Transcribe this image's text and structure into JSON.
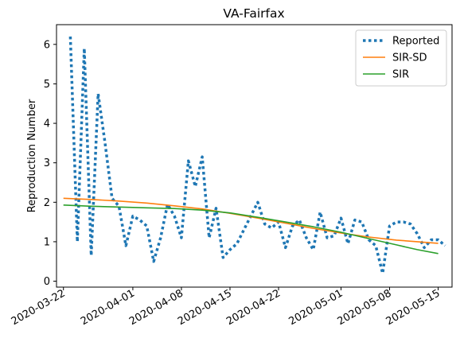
{
  "chart_data": {
    "type": "line",
    "title": "VA-Fairfax",
    "ylabel": "Reproduction Number",
    "xlabel": "",
    "xlim": [
      "2020-03-21",
      "2020-05-17"
    ],
    "ylim": [
      -0.15,
      6.5
    ],
    "x_ticks": [
      "2020-03-22",
      "2020-04-01",
      "2020-04-08",
      "2020-04-15",
      "2020-04-22",
      "2020-05-01",
      "2020-05-08",
      "2020-05-15"
    ],
    "y_ticks": [
      0,
      1,
      2,
      3,
      4,
      5,
      6
    ],
    "legend_position": "top-right",
    "grid": false,
    "series": [
      {
        "name": "Reported",
        "color": "#1f77b4",
        "style": "dotted",
        "points": [
          [
            "2020-03-23",
            6.2
          ],
          [
            "2020-03-24",
            1.0
          ],
          [
            "2020-03-25",
            5.9
          ],
          [
            "2020-03-26",
            0.65
          ],
          [
            "2020-03-27",
            4.75
          ],
          [
            "2020-03-28",
            3.5
          ],
          [
            "2020-03-29",
            2.1
          ],
          [
            "2020-03-30",
            1.9
          ],
          [
            "2020-03-31",
            0.9
          ],
          [
            "2020-04-01",
            1.65
          ],
          [
            "2020-04-02",
            1.55
          ],
          [
            "2020-04-03",
            1.4
          ],
          [
            "2020-04-04",
            0.5
          ],
          [
            "2020-04-05",
            1.1
          ],
          [
            "2020-04-06",
            1.95
          ],
          [
            "2020-04-07",
            1.65
          ],
          [
            "2020-04-08",
            1.1
          ],
          [
            "2020-04-09",
            3.05
          ],
          [
            "2020-04-10",
            2.4
          ],
          [
            "2020-04-11",
            3.15
          ],
          [
            "2020-04-12",
            1.1
          ],
          [
            "2020-04-13",
            1.85
          ],
          [
            "2020-04-14",
            0.6
          ],
          [
            "2020-04-15",
            0.8
          ],
          [
            "2020-04-16",
            0.95
          ],
          [
            "2020-04-17",
            1.3
          ],
          [
            "2020-04-18",
            1.65
          ],
          [
            "2020-04-19",
            2.0
          ],
          [
            "2020-04-20",
            1.45
          ],
          [
            "2020-04-21",
            1.35
          ],
          [
            "2020-04-22",
            1.5
          ],
          [
            "2020-04-23",
            0.85
          ],
          [
            "2020-04-24",
            1.4
          ],
          [
            "2020-04-25",
            1.55
          ],
          [
            "2020-04-26",
            1.1
          ],
          [
            "2020-04-27",
            0.8
          ],
          [
            "2020-04-28",
            1.75
          ],
          [
            "2020-04-29",
            1.1
          ],
          [
            "2020-04-30",
            1.15
          ],
          [
            "2020-05-01",
            1.6
          ],
          [
            "2020-05-02",
            0.95
          ],
          [
            "2020-05-03",
            1.55
          ],
          [
            "2020-05-04",
            1.5
          ],
          [
            "2020-05-05",
            1.05
          ],
          [
            "2020-05-06",
            0.9
          ],
          [
            "2020-05-07",
            0.2
          ],
          [
            "2020-05-08",
            1.4
          ],
          [
            "2020-05-09",
            1.5
          ],
          [
            "2020-05-10",
            1.5
          ],
          [
            "2020-05-11",
            1.45
          ],
          [
            "2020-05-12",
            1.2
          ],
          [
            "2020-05-13",
            0.85
          ],
          [
            "2020-05-14",
            1.05
          ],
          [
            "2020-05-15",
            1.05
          ],
          [
            "2020-05-16",
            0.9
          ]
        ]
      },
      {
        "name": "SIR-SD",
        "color": "#ff7f0e",
        "style": "solid",
        "points": [
          [
            "2020-03-22",
            2.1
          ],
          [
            "2020-03-26",
            2.07
          ],
          [
            "2020-03-30",
            2.03
          ],
          [
            "2020-04-03",
            1.98
          ],
          [
            "2020-04-07",
            1.91
          ],
          [
            "2020-04-11",
            1.83
          ],
          [
            "2020-04-15",
            1.72
          ],
          [
            "2020-04-19",
            1.6
          ],
          [
            "2020-04-23",
            1.47
          ],
          [
            "2020-04-27",
            1.34
          ],
          [
            "2020-05-01",
            1.22
          ],
          [
            "2020-05-05",
            1.12
          ],
          [
            "2020-05-09",
            1.04
          ],
          [
            "2020-05-12",
            1.0
          ],
          [
            "2020-05-15",
            0.96
          ]
        ]
      },
      {
        "name": "SIR",
        "color": "#2ca02c",
        "style": "solid",
        "points": [
          [
            "2020-03-22",
            1.93
          ],
          [
            "2020-03-26",
            1.9
          ],
          [
            "2020-03-30",
            1.88
          ],
          [
            "2020-04-03",
            1.86
          ],
          [
            "2020-04-07",
            1.84
          ],
          [
            "2020-04-11",
            1.8
          ],
          [
            "2020-04-15",
            1.73
          ],
          [
            "2020-04-19",
            1.62
          ],
          [
            "2020-04-23",
            1.5
          ],
          [
            "2020-04-27",
            1.38
          ],
          [
            "2020-05-01",
            1.24
          ],
          [
            "2020-05-05",
            1.08
          ],
          [
            "2020-05-09",
            0.92
          ],
          [
            "2020-05-12",
            0.8
          ],
          [
            "2020-05-15",
            0.7
          ]
        ]
      }
    ]
  }
}
